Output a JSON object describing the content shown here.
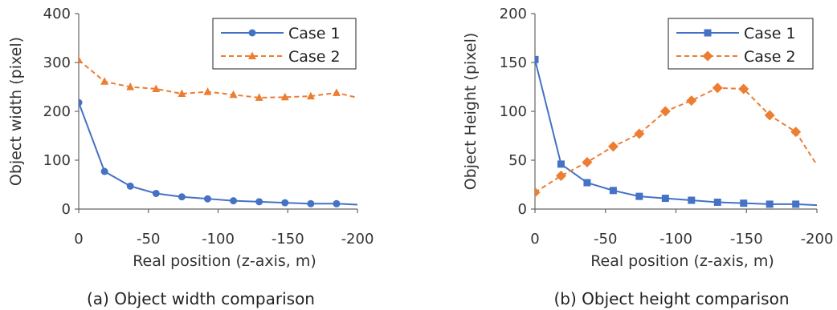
{
  "chart_data": [
    {
      "type": "line",
      "caption": "(a) Object width comparison",
      "xlabel": "Real position (z-axis, m)",
      "ylabel": "Object width (pixel)",
      "x": [
        0,
        -18.5,
        -37,
        -55.5,
        -74,
        -92.5,
        -111,
        -129.5,
        -148,
        -166.5,
        -185,
        -200
      ],
      "xlim": [
        0,
        -200
      ],
      "ylim": [
        0,
        400
      ],
      "xticks": [
        "0",
        "-50",
        "-100",
        "-150",
        "-200"
      ],
      "yticks": [
        "0",
        "100",
        "200",
        "300",
        "400"
      ],
      "legend_position": "top-right",
      "grid": false,
      "series": [
        {
          "name": "Case 1",
          "color": "#4472C4",
          "marker": "circle",
          "dash": "solid",
          "values": [
            218,
            77,
            47,
            32,
            25,
            21,
            17,
            15,
            13,
            11,
            11,
            9
          ]
        },
        {
          "name": "Case 2",
          "color": "#ED7D31",
          "marker": "triangle",
          "dash": "dashed",
          "values": [
            305,
            261,
            250,
            246,
            236,
            240,
            234,
            228,
            229,
            231,
            238,
            228
          ]
        }
      ]
    },
    {
      "type": "line",
      "caption": "(b) Object height comparison",
      "xlabel": "Real position (z-axis, m)",
      "ylabel": "Object Height (pixel)",
      "x": [
        0,
        -18.5,
        -37,
        -55.5,
        -74,
        -92.5,
        -111,
        -129.5,
        -148,
        -166.5,
        -185,
        -200
      ],
      "xlim": [
        0,
        -200
      ],
      "ylim": [
        0,
        200
      ],
      "xticks": [
        "0",
        "-50",
        "-100",
        "-150",
        "-200"
      ],
      "yticks": [
        "0",
        "50",
        "100",
        "150",
        "200"
      ],
      "legend_position": "top-right",
      "grid": false,
      "series": [
        {
          "name": "Case 1",
          "color": "#4472C4",
          "marker": "square",
          "dash": "solid",
          "values": [
            153,
            46,
            27,
            19,
            13,
            11,
            9,
            7,
            6,
            5,
            5,
            4
          ]
        },
        {
          "name": "Case 2",
          "color": "#ED7D31",
          "marker": "diamond",
          "dash": "dashed",
          "values": [
            17,
            34,
            48,
            64,
            77,
            100,
            111,
            124,
            123,
            96,
            79,
            45
          ]
        }
      ]
    }
  ]
}
